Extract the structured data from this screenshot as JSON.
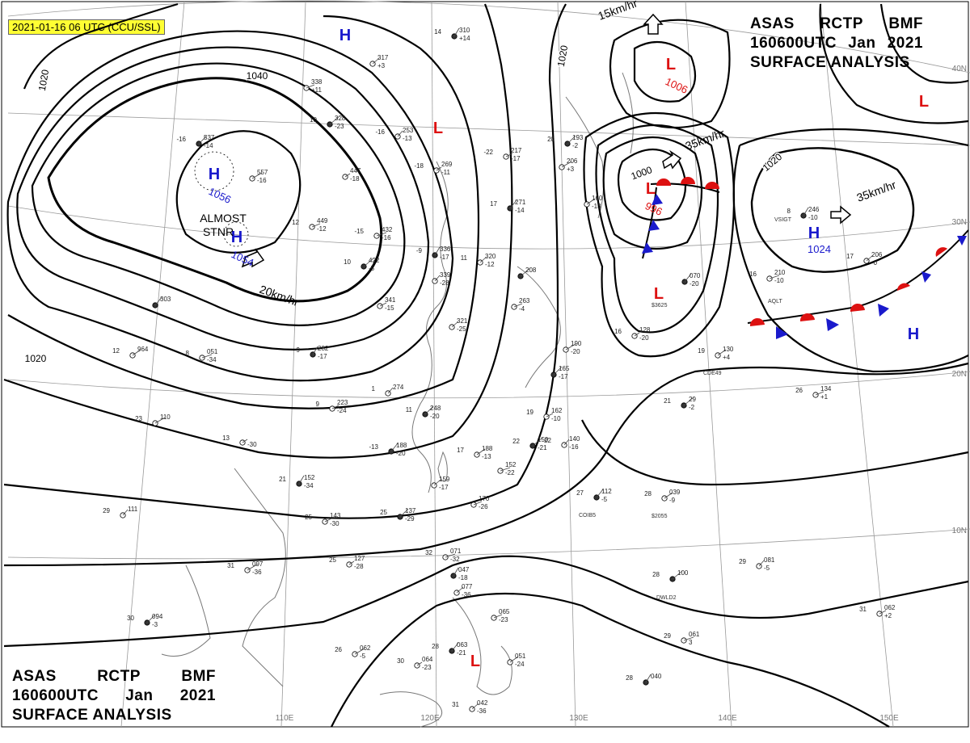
{
  "stamp": "2021-01-16 06 UTC (CCU/SSL)",
  "header": {
    "line1": [
      "ASAS",
      "RCTP",
      "BMF"
    ],
    "line2": [
      "160600UTC",
      "Jan",
      "2021"
    ],
    "line3": "SURFACE ANALYSIS"
  },
  "colors": {
    "high": "#1a1acc",
    "low": "#dd1111",
    "isobar": "#000000",
    "coast": "#777777",
    "grid": "#9a9a9a"
  },
  "longitudes": [
    "110E",
    "120E",
    "130E",
    "140E",
    "150E"
  ],
  "latitudes": [
    "40N",
    "30N",
    "20N",
    "10N"
  ],
  "isobar_labels": [
    "1040",
    "1020",
    "1020",
    "1020",
    "1000",
    "1020"
  ],
  "systems": [
    {
      "type": "H",
      "pressure": "1056"
    },
    {
      "type": "H",
      "pressure": "1054"
    },
    {
      "type": "H",
      "pressure": "1024"
    },
    {
      "type": "H",
      "pressure": ""
    },
    {
      "type": "H",
      "pressure": ""
    },
    {
      "type": "L",
      "pressure": "1006"
    },
    {
      "type": "L",
      "pressure": "996"
    },
    {
      "type": "L",
      "pressure": ""
    },
    {
      "type": "L",
      "pressure": ""
    },
    {
      "type": "L",
      "pressure": ""
    },
    {
      "type": "L",
      "pressure": ""
    }
  ],
  "movements": [
    "20km/hr",
    "35km/hr",
    "35km/hr",
    "15km/hr"
  ],
  "annotations": [
    "ALMOST",
    "STNR"
  ],
  "ship_ids": [
    "VSIGT",
    "AQLT",
    "CDE49",
    "COIB5",
    "DWLD2",
    "$2055",
    "$3625"
  ],
  "stations": [
    {
      "t": "14",
      "p": "310",
      "d": "+14"
    },
    {
      "t": "",
      "p": "317",
      "d": "+3"
    },
    {
      "t": "",
      "p": "338",
      "d": "+11"
    },
    {
      "t": "10",
      "p": "328",
      "d": "-23"
    },
    {
      "t": "-16",
      "p": "253",
      "d": "-13"
    },
    {
      "t": "-22",
      "p": "217",
      "d": "-17"
    },
    {
      "t": "20",
      "p": "193",
      "d": "-2"
    },
    {
      "t": "",
      "p": "206",
      "d": "+3"
    },
    {
      "t": "-18",
      "p": "269",
      "d": "-11"
    },
    {
      "t": "17",
      "p": "271",
      "d": "-14"
    },
    {
      "t": "",
      "p": "160",
      "d": "-13"
    },
    {
      "t": "-15",
      "p": "432",
      "d": "-16"
    },
    {
      "t": "-9",
      "p": "336",
      "d": "-17"
    },
    {
      "t": "11",
      "p": "320",
      "d": "-12"
    },
    {
      "t": "12",
      "p": "449",
      "d": "-12"
    },
    {
      "t": "10",
      "p": "422",
      "d": "-5"
    },
    {
      "t": "",
      "p": "339",
      "d": "-28"
    },
    {
      "t": "",
      "p": "341",
      "d": "-15"
    },
    {
      "t": "-16",
      "p": "537",
      "d": "-14"
    },
    {
      "t": "",
      "p": "557",
      "d": "-16"
    },
    {
      "t": "",
      "p": "447",
      "d": "-18"
    },
    {
      "t": "",
      "p": "303",
      "d": ""
    },
    {
      "t": "12",
      "p": "964",
      "d": ""
    },
    {
      "t": "8",
      "p": "051",
      "d": "-34"
    },
    {
      "t": "9",
      "p": "282",
      "d": "-17"
    },
    {
      "t": "",
      "p": "321",
      "d": "-25"
    },
    {
      "t": "",
      "p": "263",
      "d": "-4"
    },
    {
      "t": "",
      "p": "208",
      "d": ""
    },
    {
      "t": "1",
      "p": "274",
      "d": ""
    },
    {
      "t": "9",
      "p": "223",
      "d": "-24"
    },
    {
      "t": "11",
      "p": "248",
      "d": "-20"
    },
    {
      "t": "23",
      "p": "110",
      "d": ""
    },
    {
      "t": "13",
      "p": "",
      "d": "-30"
    },
    {
      "t": "-13",
      "p": "188",
      "d": "-20"
    },
    {
      "t": "17",
      "p": "188",
      "d": "-13"
    },
    {
      "t": "",
      "p": "152",
      "d": "-22"
    },
    {
      "t": "21",
      "p": "152",
      "d": "-34"
    },
    {
      "t": "",
      "p": "159",
      "d": "-17"
    },
    {
      "t": "",
      "p": "170",
      "d": "-26"
    },
    {
      "t": "22",
      "p": "150",
      "d": "-21"
    },
    {
      "t": "22",
      "p": "140",
      "d": "-16"
    },
    {
      "t": "19",
      "p": "162",
      "d": "-10"
    },
    {
      "t": "",
      "p": "165",
      "d": "-17"
    },
    {
      "t": "",
      "p": "190",
      "d": "-20"
    },
    {
      "t": "16",
      "p": "128",
      "d": "-20"
    },
    {
      "t": "",
      "p": "070",
      "d": "-20"
    },
    {
      "t": "19",
      "p": "130",
      "d": "+4"
    },
    {
      "t": "16",
      "p": "210",
      "d": "-10"
    },
    {
      "t": "8",
      "p": "246",
      "d": "-10"
    },
    {
      "t": "17",
      "p": "206",
      "d": "-0"
    },
    {
      "t": "26",
      "p": "134",
      "d": "+1"
    },
    {
      "t": "21",
      "p": "29",
      "d": "-2"
    },
    {
      "t": "29",
      "p": "111",
      "d": ""
    },
    {
      "t": "25",
      "p": "143",
      "d": "-30"
    },
    {
      "t": "25",
      "p": "137",
      "d": "-29"
    },
    {
      "t": "31",
      "p": "097",
      "d": "-36"
    },
    {
      "t": "25",
      "p": "127",
      "d": "-28"
    },
    {
      "t": "27",
      "p": "112",
      "d": "-5"
    },
    {
      "t": "28",
      "p": "039",
      "d": "-9"
    },
    {
      "t": "32",
      "p": "071",
      "d": "-32"
    },
    {
      "t": "",
      "p": "047",
      "d": "-18"
    },
    {
      "t": "",
      "p": "077",
      "d": "-36"
    },
    {
      "t": "",
      "p": "065",
      "d": "-23"
    },
    {
      "t": "28",
      "p": "100",
      "d": ""
    },
    {
      "t": "29",
      "p": "081",
      "d": "-5"
    },
    {
      "t": "31",
      "p": "062",
      "d": "+2"
    },
    {
      "t": "30",
      "p": "094",
      "d": "-3"
    },
    {
      "t": "26",
      "p": "062",
      "d": "-5"
    },
    {
      "t": "30",
      "p": "064",
      "d": "-23"
    },
    {
      "t": "28",
      "p": "063",
      "d": "-21"
    },
    {
      "t": "",
      "p": "051",
      "d": "-24"
    },
    {
      "t": "29",
      "p": "061",
      "d": "3"
    },
    {
      "t": "28",
      "p": "040",
      "d": ""
    },
    {
      "t": "31",
      "p": "042",
      "d": "-36"
    }
  ]
}
